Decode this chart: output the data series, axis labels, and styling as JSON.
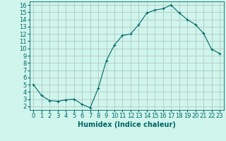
{
  "x": [
    0,
    1,
    2,
    3,
    4,
    5,
    6,
    7,
    8,
    9,
    10,
    11,
    12,
    13,
    14,
    15,
    16,
    17,
    18,
    19,
    20,
    21,
    22,
    23
  ],
  "y": [
    5.0,
    3.5,
    2.8,
    2.7,
    2.9,
    3.0,
    2.3,
    1.8,
    4.5,
    8.3,
    10.5,
    11.8,
    12.0,
    13.3,
    14.9,
    15.3,
    15.5,
    16.0,
    14.9,
    14.0,
    13.3,
    12.1,
    9.9,
    9.3
  ],
  "line_color": "#006666",
  "marker": "+",
  "marker_size": 3,
  "bg_color": "#cff5ec",
  "grid_color": "#b0c8c0",
  "xlabel": "Humidex (Indice chaleur)",
  "ylabel_ticks": [
    2,
    3,
    4,
    5,
    6,
    7,
    8,
    9,
    10,
    11,
    12,
    13,
    14,
    15,
    16
  ],
  "ylim": [
    1.5,
    16.5
  ],
  "xlim": [
    -0.5,
    23.5
  ],
  "xlabel_fontsize": 7,
  "tick_fontsize": 6,
  "linewidth": 0.8,
  "markeredgewidth": 0.8
}
